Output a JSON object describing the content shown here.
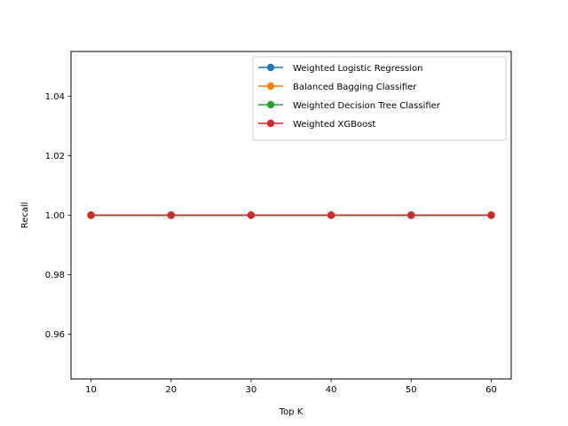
{
  "chart_data": {
    "type": "line",
    "title": "",
    "xlabel": "Top K",
    "ylabel": "Recall",
    "x": [
      10,
      20,
      30,
      40,
      50,
      60
    ],
    "xlim": [
      7.5,
      62.5
    ],
    "ylim": [
      0.945,
      1.055
    ],
    "xticks": [
      "10",
      "20",
      "30",
      "40",
      "50",
      "60"
    ],
    "yticks": [
      "0.96",
      "0.98",
      "1.00",
      "1.02",
      "1.04"
    ],
    "grid": false,
    "legend_position": "top-right",
    "series": [
      {
        "name": "Weighted Logistic Regression",
        "color": "#1f77b4",
        "marker": "circle",
        "values": [
          1.0,
          1.0,
          1.0,
          1.0,
          1.0,
          1.0
        ]
      },
      {
        "name": "Balanced Bagging Classifier",
        "color": "#ff7f0e",
        "marker": "circle",
        "values": [
          1.0,
          1.0,
          1.0,
          1.0,
          1.0,
          1.0
        ]
      },
      {
        "name": "Weighted Decision Tree Classifier",
        "color": "#2ca02c",
        "marker": "circle",
        "values": [
          1.0,
          1.0,
          1.0,
          1.0,
          1.0,
          1.0
        ]
      },
      {
        "name": "Weighted XGBoost",
        "color": "#d62728",
        "marker": "circle",
        "values": [
          1.0,
          1.0,
          1.0,
          1.0,
          1.0,
          1.0
        ]
      }
    ]
  }
}
